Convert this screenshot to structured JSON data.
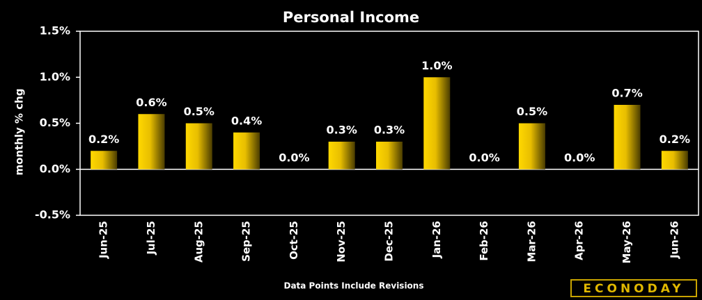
{
  "chart_data": {
    "type": "bar",
    "title": "Personal Income",
    "y_label": "monthly % chg",
    "categories": [
      "Jun-25",
      "Jul-25",
      "Aug-25",
      "Sep-25",
      "Oct-25",
      "Nov-25",
      "Dec-25",
      "Jan-26",
      "Feb-26",
      "Mar-26",
      "Apr-26",
      "May-26",
      "Jun-26"
    ],
    "values": [
      0.2,
      0.6,
      0.5,
      0.4,
      0.0,
      0.3,
      0.3,
      1.0,
      0.0,
      0.5,
      0.0,
      0.7,
      0.2
    ],
    "value_labels": [
      "0.2%",
      "0.6%",
      "0.5%",
      "0.4%",
      "0.0%",
      "0.3%",
      "0.3%",
      "1.0%",
      "0.0%",
      "0.5%",
      "0.0%",
      "0.7%",
      "0.2%"
    ],
    "color": "#f5c800",
    "ylim": [
      -0.5,
      1.5
    ],
    "yticks": [
      {
        "value": -0.5,
        "label": "-0.5%"
      },
      {
        "value": 0.0,
        "label": "0.0%"
      },
      {
        "value": 0.5,
        "label": "0.5%"
      },
      {
        "value": 1.0,
        "label": "1.0%"
      },
      {
        "value": 1.5,
        "label": "1.5%"
      }
    ],
    "footnote": "Data Points Include Revisions",
    "source_logo": "ECONODAY"
  }
}
